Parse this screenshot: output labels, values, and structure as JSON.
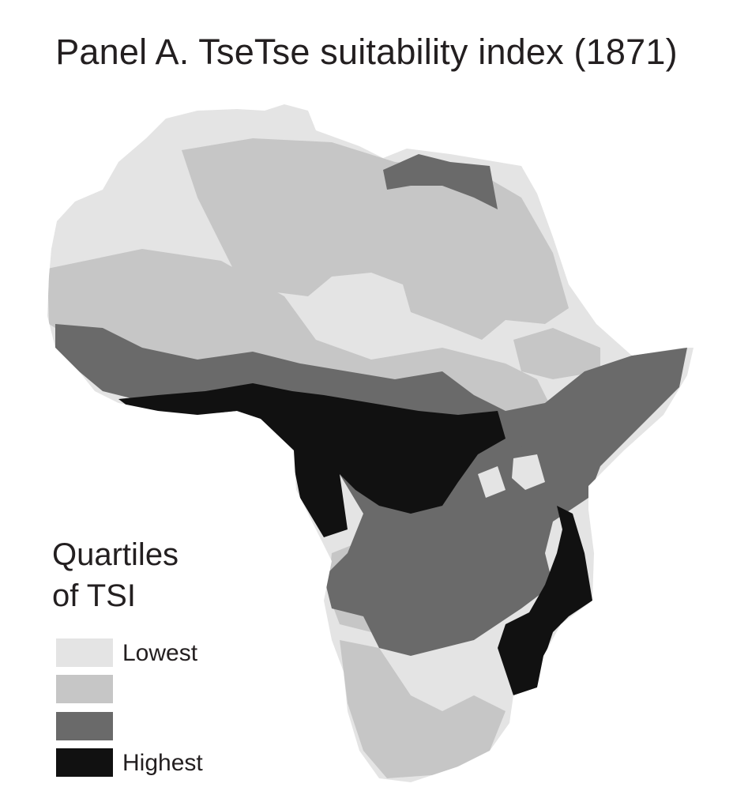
{
  "title": "Panel A. TseTse suitability index (1871)",
  "legend": {
    "title_line1": "Quartiles",
    "title_line2": "of TSI",
    "items": [
      {
        "label": "Lowest",
        "color": "#e4e4e4"
      },
      {
        "label": "",
        "color": "#c6c6c6"
      },
      {
        "label": "",
        "color": "#6a6a6a"
      },
      {
        "label": "Highest",
        "color": "#111111"
      }
    ]
  },
  "map": {
    "region": "Africa",
    "quartile_colors": [
      "#e4e4e4",
      "#c6c6c6",
      "#6a6a6a",
      "#111111"
    ]
  }
}
